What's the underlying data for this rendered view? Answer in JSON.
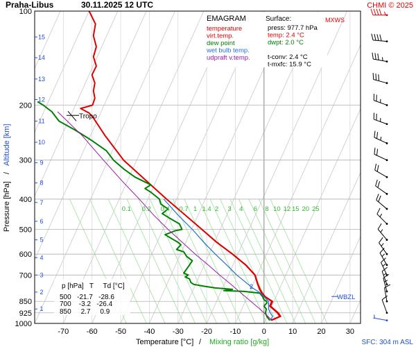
{
  "header": {
    "station": "Praha-Libus",
    "datetime": "30.11.2025 12 UTC",
    "copyright": "CHMI © 2025"
  },
  "legend": {
    "title": "EMAGRAM",
    "items": [
      {
        "label": "temperature",
        "color": "#e00000"
      },
      {
        "label": "virt.temp.",
        "color": "#e00000"
      },
      {
        "label": "dew point",
        "color": "#008000"
      },
      {
        "label": "wet bulb temp.",
        "color": "#1f6fd6"
      },
      {
        "label": "udpraft v.temp.",
        "color": "#9c1aa8"
      }
    ]
  },
  "surface": {
    "title": "Surface:",
    "lines": [
      {
        "text": "press: 977.7 hPa",
        "color": "#000000"
      },
      {
        "text": "temp: 2.4 °C",
        "color": "#e00000"
      },
      {
        "text": "dwpt: 2.0 °C",
        "color": "#008000"
      },
      {
        "text": "",
        "color": "#000000"
      },
      {
        "text": "t-conv: 2.4 °C",
        "color": "#000000"
      },
      {
        "text": "t-mxfc: 15.9 °C",
        "color": "#000000"
      }
    ]
  },
  "table": {
    "header": "p [hPa]   T     Td [°C]",
    "rows": [
      "500   -21.7   -28.6",
      "700    -3.2   -26.4",
      "850     2.7     0.9"
    ]
  },
  "labels": {
    "tropo": "Tropo",
    "wbzl": "WBZL",
    "mxws": "MXWS",
    "sfc": "SFC: 304 m ASL",
    "wbzl_digit": "2",
    "left_axis_title": "Pressure [hPa]",
    "axis_separator": "/",
    "right_axis_title": "Altitude [km]",
    "x_title_main": "Temperature [°C]",
    "x_title_sep": "/",
    "x_title_mix": "Mixing ratio [g/kg]"
  },
  "chart_data": {
    "type": "line",
    "title": "Praha-Libus 30.11.2025 12 UTC",
    "xlabel": "Temperature [°C] / Mixing ratio [g/kg]",
    "ylabel": "Pressure [hPa] / Altitude [km]",
    "xlim": [
      -80,
      35
    ],
    "ylim": [
      1000,
      100
    ],
    "y_scale": "log",
    "grid": true,
    "x_ticks": [
      -70,
      -60,
      -50,
      -40,
      -30,
      -20,
      -10,
      0,
      10,
      20,
      30
    ],
    "pressure_ticks": [
      100,
      200,
      300,
      400,
      500,
      600,
      700,
      850,
      925,
      1000
    ],
    "altitude_ticks": [
      {
        "km": 15,
        "p": 121
      },
      {
        "km": 14,
        "p": 141
      },
      {
        "km": 13,
        "p": 165
      },
      {
        "km": 12,
        "p": 192
      },
      {
        "km": 11,
        "p": 225
      },
      {
        "km": 10,
        "p": 263
      },
      {
        "km": 9,
        "p": 306
      },
      {
        "km": 8,
        "p": 355
      },
      {
        "km": 7,
        "p": 410
      },
      {
        "km": 6,
        "p": 471
      },
      {
        "km": 5,
        "p": 540
      },
      {
        "km": 4,
        "p": 616
      },
      {
        "km": 3,
        "p": 700
      },
      {
        "km": 2,
        "p": 794
      },
      {
        "km": 1,
        "p": 899
      }
    ],
    "mixing_ratio_labels": [
      "0.1",
      "0.2",
      "0.4",
      "0.7",
      "1",
      "1.4",
      "2",
      "3",
      "4",
      "6",
      "8",
      "10",
      "12",
      "15",
      "20",
      "25"
    ],
    "mixing_ratio_label_temps": [
      -48,
      -41,
      -34.5,
      -28,
      -24,
      -20,
      -16.5,
      -12,
      -8,
      -3,
      1,
      4.5,
      8,
      11,
      14.5,
      18
    ],
    "mixing_ratio_label_pressure": 410,
    "isotherm_temps": [
      -190,
      -180,
      -170,
      -160,
      -150,
      -140,
      -130,
      -120,
      -110,
      -100,
      -90,
      -80,
      -70,
      -60,
      -50,
      -40,
      -30,
      -20,
      -10,
      0,
      10,
      20,
      30
    ],
    "mixing_ratio_line_temps": [
      -48,
      -41,
      -34.5,
      -28,
      -24,
      -20,
      -16.5,
      -12,
      -8,
      -3,
      1,
      4.5,
      8,
      11,
      14.5,
      18,
      22
    ],
    "mixing_ratio_slope_per_100hpa": 3.3,
    "tropopause_hpa": 218,
    "tropopause_label_temp": -53,
    "wbzl_hpa": 820,
    "wbzl_label_temp": 3,
    "surface_hpa": 977.7,
    "series": [
      {
        "name": "temperature",
        "color": "#e00000",
        "points": [
          [
            977.7,
            2.4
          ],
          [
            950,
            5.5
          ],
          [
            925,
            4.7
          ],
          [
            900,
            3.2
          ],
          [
            880,
            2.0
          ],
          [
            850,
            2.7
          ],
          [
            820,
            0.2
          ],
          [
            800,
            -0.8
          ],
          [
            780,
            -1.5
          ],
          [
            750,
            -2.2
          ],
          [
            720,
            -2.8
          ],
          [
            700,
            -3.2
          ],
          [
            650,
            -6.4
          ],
          [
            600,
            -11.0
          ],
          [
            550,
            -16.5
          ],
          [
            500,
            -21.7
          ],
          [
            450,
            -27.5
          ],
          [
            400,
            -34.0
          ],
          [
            350,
            -41.0
          ],
          [
            300,
            -49.0
          ],
          [
            250,
            -55.5
          ],
          [
            220,
            -59.5
          ],
          [
            212,
            -61.0
          ],
          [
            205,
            -64.0
          ],
          [
            200,
            -59.8
          ],
          [
            190,
            -59.0
          ],
          [
            180,
            -59.5
          ],
          [
            170,
            -59.0
          ],
          [
            160,
            -60.0
          ],
          [
            150,
            -58.5
          ],
          [
            140,
            -59.5
          ],
          [
            130,
            -58.5
          ],
          [
            120,
            -59.5
          ],
          [
            110,
            -58.8
          ],
          [
            100,
            -61.0
          ]
        ]
      },
      {
        "name": "virt.temp.",
        "color": "#e00000",
        "points": [
          [
            977.7,
            2.8
          ],
          [
            950,
            5.9
          ],
          [
            925,
            5.1
          ],
          [
            900,
            3.6
          ],
          [
            880,
            2.4
          ],
          [
            850,
            3.1
          ],
          [
            820,
            0.5
          ],
          [
            800,
            -0.5
          ],
          [
            780,
            -1.2
          ],
          [
            750,
            -2.0
          ],
          [
            720,
            -2.6
          ],
          [
            700,
            -3.0
          ],
          [
            650,
            -6.2
          ],
          [
            600,
            -10.8
          ],
          [
            550,
            -16.3
          ],
          [
            500,
            -21.6
          ],
          [
            450,
            -27.4
          ],
          [
            400,
            -33.9
          ],
          [
            350,
            -40.9
          ],
          [
            300,
            -48.9
          ],
          [
            250,
            -55.5
          ],
          [
            220,
            -59.5
          ]
        ]
      },
      {
        "name": "dew point",
        "color": "#008000",
        "points": [
          [
            977.7,
            2.0
          ],
          [
            950,
            1.0
          ],
          [
            925,
            0.5
          ],
          [
            900,
            0.8
          ],
          [
            880,
            0.0
          ],
          [
            860,
            1.0
          ],
          [
            850,
            0.9
          ],
          [
            840,
            0.0
          ],
          [
            820,
            -0.5
          ],
          [
            800,
            -1.5
          ],
          [
            790,
            -7.0
          ],
          [
            785,
            -14.0
          ],
          [
            778,
            -11.0
          ],
          [
            770,
            -17.0
          ],
          [
            760,
            -21.0
          ],
          [
            750,
            -24.5
          ],
          [
            740,
            -25.5
          ],
          [
            720,
            -26.0
          ],
          [
            710,
            -27.5
          ],
          [
            700,
            -26.4
          ],
          [
            690,
            -28.0
          ],
          [
            670,
            -27.0
          ],
          [
            650,
            -26.0
          ],
          [
            630,
            -25.0
          ],
          [
            610,
            -27.0
          ],
          [
            590,
            -28.0
          ],
          [
            580,
            -30.5
          ],
          [
            560,
            -29.0
          ],
          [
            550,
            -30.0
          ],
          [
            530,
            -33.0
          ],
          [
            520,
            -34.5
          ],
          [
            505,
            -31.0
          ],
          [
            500,
            -28.6
          ],
          [
            480,
            -29.5
          ],
          [
            460,
            -33.0
          ],
          [
            445,
            -35.5
          ],
          [
            430,
            -33.5
          ],
          [
            415,
            -36.0
          ],
          [
            400,
            -36.5
          ],
          [
            380,
            -39.5
          ],
          [
            370,
            -41.5
          ],
          [
            360,
            -39.5
          ],
          [
            340,
            -45.0
          ],
          [
            320,
            -49.0
          ],
          [
            300,
            -52.5
          ],
          [
            280,
            -55.0
          ],
          [
            260,
            -60.0
          ],
          [
            240,
            -66.0
          ],
          [
            225,
            -71.5
          ],
          [
            210,
            -74.0
          ],
          [
            200,
            -77.0
          ],
          [
            195,
            -79.0
          ]
        ]
      },
      {
        "name": "wet bulb temp.",
        "color": "#1f6fd6",
        "points": [
          [
            977.7,
            2.2
          ],
          [
            950,
            3.0
          ],
          [
            925,
            2.2
          ],
          [
            900,
            1.6
          ],
          [
            850,
            1.6
          ],
          [
            800,
            -1.2
          ],
          [
            770,
            -4.0
          ],
          [
            750,
            -5.5
          ],
          [
            700,
            -9.5
          ],
          [
            650,
            -13.0
          ],
          [
            600,
            -17.0
          ],
          [
            550,
            -21.0
          ],
          [
            500,
            -25.0
          ],
          [
            450,
            -30.0
          ],
          [
            400,
            -35.0
          ]
        ]
      },
      {
        "name": "udpraft v.temp.",
        "color": "#9c1aa8",
        "points": [
          [
            977.7,
            2.8
          ],
          [
            950,
            1.4
          ],
          [
            925,
            0.0
          ],
          [
            900,
            -1.4
          ],
          [
            875,
            -3.0
          ],
          [
            850,
            -4.6
          ],
          [
            800,
            -8.0
          ],
          [
            750,
            -11.5
          ],
          [
            700,
            -15.5
          ],
          [
            650,
            -19.5
          ],
          [
            600,
            -24.0
          ],
          [
            550,
            -28.5
          ],
          [
            500,
            -33.5
          ],
          [
            450,
            -38.5
          ],
          [
            400,
            -43.5
          ],
          [
            350,
            -49.5
          ],
          [
            300,
            -56.0
          ],
          [
            250,
            -63.5
          ],
          [
            210,
            -72.0
          ]
        ]
      }
    ],
    "wind_barbs": [
      {
        "p": 103,
        "dir": 270,
        "kt": 45,
        "color": "#e00000"
      },
      {
        "p": 125,
        "dir": 275,
        "kt": 40
      },
      {
        "p": 145,
        "dir": 280,
        "kt": 35
      },
      {
        "p": 170,
        "dir": 285,
        "kt": 30
      },
      {
        "p": 200,
        "dir": 290,
        "kt": 25
      },
      {
        "p": 230,
        "dir": 290,
        "kt": 25
      },
      {
        "p": 265,
        "dir": 295,
        "kt": 25
      },
      {
        "p": 300,
        "dir": 295,
        "kt": 20
      },
      {
        "p": 340,
        "dir": 300,
        "kt": 20
      },
      {
        "p": 385,
        "dir": 305,
        "kt": 20
      },
      {
        "p": 430,
        "dir": 310,
        "kt": 20
      },
      {
        "p": 480,
        "dir": 315,
        "kt": 15
      },
      {
        "p": 540,
        "dir": 320,
        "kt": 15
      },
      {
        "p": 600,
        "dir": 325,
        "kt": 15
      },
      {
        "p": 650,
        "dir": 330,
        "kt": 15
      },
      {
        "p": 700,
        "dir": 335,
        "kt": 15
      },
      {
        "p": 750,
        "dir": 340,
        "kt": 15
      },
      {
        "p": 790,
        "dir": 345,
        "kt": 15
      },
      {
        "p": 850,
        "dir": 350,
        "kt": 10
      },
      {
        "p": 925,
        "dir": 340,
        "kt": 10
      },
      {
        "p": 977.7,
        "dir": 280,
        "kt": 5,
        "color": "#1f4fd6"
      }
    ]
  }
}
